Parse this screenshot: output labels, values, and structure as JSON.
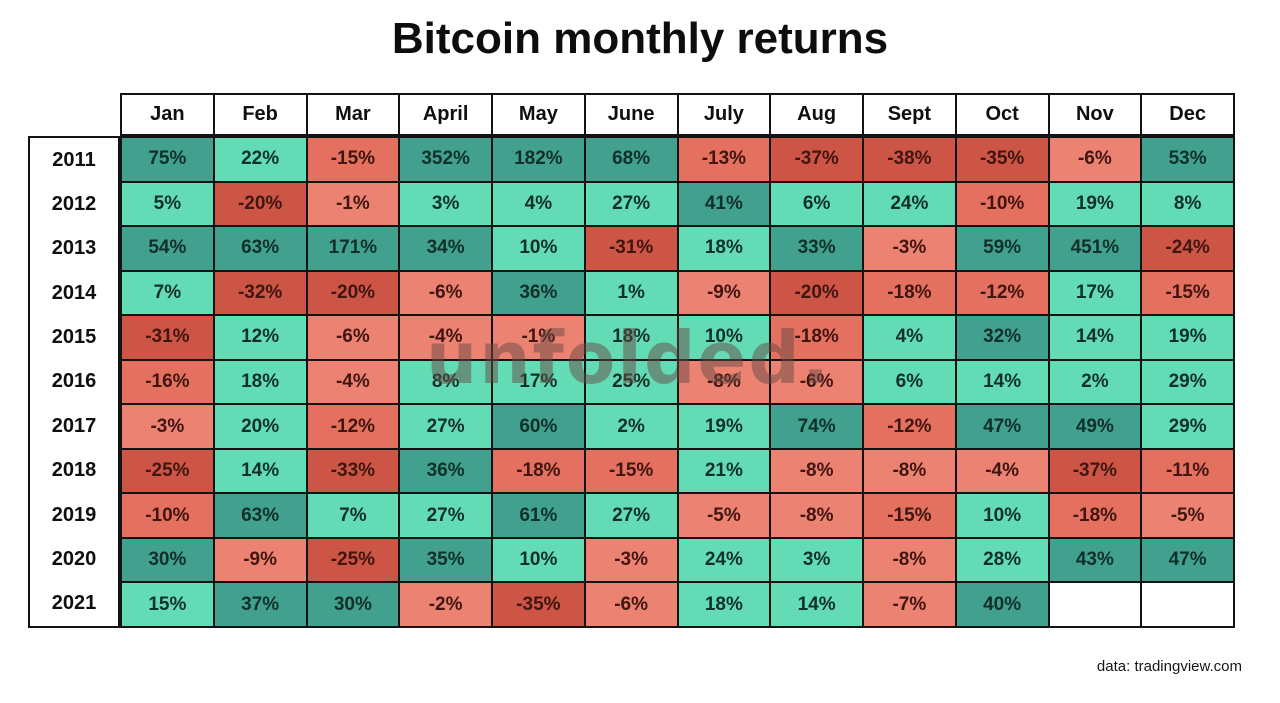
{
  "title": "Bitcoin monthly returns",
  "watermark": "unfolded.",
  "source": "data: tradingview.com",
  "colors": {
    "dark_teal": "#42a08e",
    "mint": "#63dbb4",
    "light_salmon": "#ec8272",
    "salmon": "#e4705f",
    "dark_red": "#cd5546",
    "empty": "#ffffff",
    "grid_line": "#131313",
    "text_positive": "#10302a",
    "text_negative": "#411510"
  },
  "chart_data": {
    "type": "heatmap",
    "title": "Bitcoin monthly returns",
    "unit": "%",
    "columns": [
      "Jan",
      "Feb",
      "Mar",
      "April",
      "May",
      "June",
      "July",
      "Aug",
      "Sept",
      "Oct",
      "Nov",
      "Dec"
    ],
    "rows": [
      "2011",
      "2012",
      "2013",
      "2014",
      "2015",
      "2016",
      "2017",
      "2018",
      "2019",
      "2020",
      "2021"
    ],
    "values": [
      [
        75,
        22,
        -15,
        352,
        182,
        68,
        -13,
        -37,
        -38,
        -35,
        -6,
        53
      ],
      [
        5,
        -20,
        -1,
        3,
        4,
        27,
        41,
        6,
        24,
        -10,
        19,
        8
      ],
      [
        54,
        63,
        171,
        34,
        10,
        -31,
        18,
        33,
        -3,
        59,
        451,
        -24
      ],
      [
        7,
        -32,
        -20,
        -6,
        36,
        1,
        -9,
        -20,
        -18,
        -12,
        17,
        -15
      ],
      [
        -31,
        12,
        -6,
        -4,
        -1,
        18,
        10,
        -18,
        4,
        32,
        14,
        19
      ],
      [
        -16,
        18,
        -4,
        8,
        17,
        25,
        -8,
        -6,
        6,
        14,
        2,
        29
      ],
      [
        -3,
        20,
        -12,
        27,
        60,
        2,
        19,
        74,
        -12,
        47,
        49,
        29
      ],
      [
        -25,
        14,
        -33,
        36,
        -18,
        -15,
        21,
        -8,
        -8,
        -4,
        -37,
        -11
      ],
      [
        -10,
        63,
        7,
        27,
        61,
        27,
        -5,
        -8,
        -15,
        10,
        -18,
        -5
      ],
      [
        30,
        -9,
        -25,
        35,
        10,
        -3,
        24,
        3,
        -8,
        28,
        43,
        47
      ],
      [
        15,
        37,
        30,
        -2,
        -35,
        -6,
        18,
        14,
        -7,
        40,
        null,
        null
      ]
    ],
    "color_scale_note": "v>=30 dark_teal; 0<v<30 mint; -10<v<0 light_salmon; -20<v<=-10 salmon; v<=-20 dark_red; null empty",
    "legend": "none",
    "grid": "black cell borders"
  }
}
